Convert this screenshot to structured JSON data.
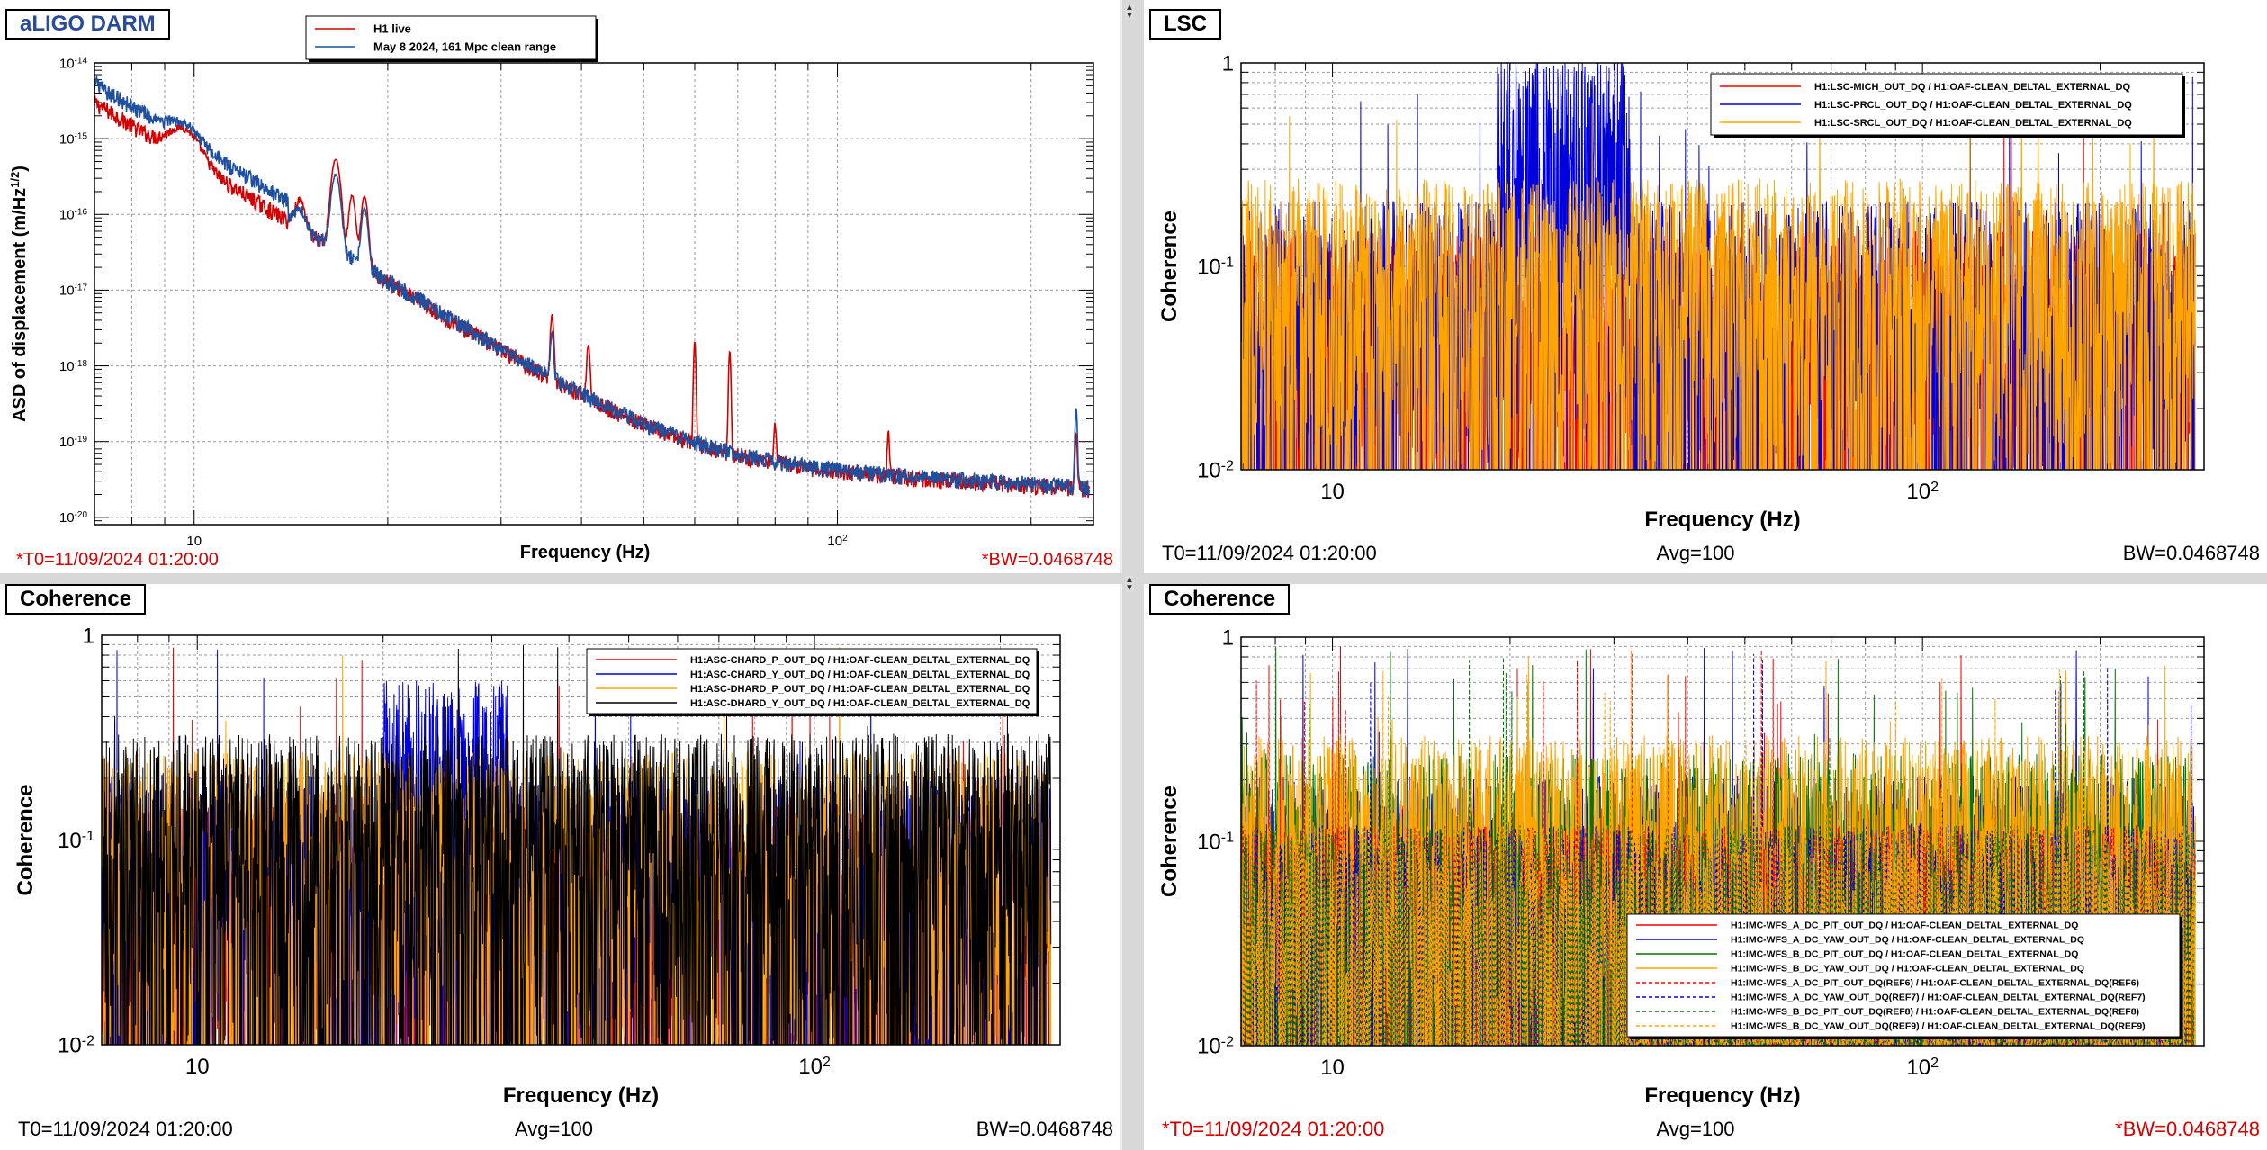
{
  "panels": [
    {
      "id": "darm",
      "title": "aLIGO DARM",
      "chart_data": {
        "type": "line",
        "ylabel": "ASD of displacement (m/Hz^1/2)",
        "xlabel": "Frequency (Hz)",
        "x_scale": "log",
        "y_scale": "log",
        "xlim": [
          7,
          250
        ],
        "ylim": [
          8e-21,
          1e-14
        ],
        "x_ticks": [
          10,
          100
        ],
        "x_tick_labels": [
          "10",
          "10^2"
        ],
        "y_ticks": [
          1e-20,
          1e-19,
          1e-18,
          1e-17,
          1e-16,
          1e-15,
          1e-14
        ],
        "y_tick_labels": [
          "10^-20",
          "10^-19",
          "10^-18",
          "10^-17",
          "10^-16",
          "10^-15",
          "10^-14"
        ],
        "grid": true,
        "legend": "top-left",
        "series": [
          {
            "name": "H1 live",
            "color": "#d40000"
          },
          {
            "name": "May 8 2024, 161 Mpc clean range",
            "color": "#1f4f9f"
          }
        ]
      },
      "footer": {
        "left": "*T0=11/09/2024 01:20:00",
        "center": "",
        "right": "*BW=0.0468748",
        "color": "#d40000"
      }
    },
    {
      "id": "lsc",
      "title": "LSC",
      "chart_data": {
        "type": "line",
        "ylabel": "Coherence",
        "xlabel": "Frequency (Hz)",
        "x_scale": "log",
        "y_scale": "log",
        "xlim": [
          7,
          300
        ],
        "ylim": [
          0.01,
          1
        ],
        "x_ticks": [
          10,
          100
        ],
        "x_tick_labels": [
          "10",
          "10^2"
        ],
        "y_ticks": [
          0.01,
          0.1,
          1
        ],
        "y_tick_labels": [
          "10^-2",
          "10^-1",
          "1"
        ],
        "grid": true,
        "legend": "top-right",
        "series": [
          {
            "name": "H1:LSC-MICH_OUT_DQ / H1:OAF-CLEAN_DELTAL_EXTERNAL_DQ",
            "color": "#ff0000"
          },
          {
            "name": "H1:LSC-PRCL_OUT_DQ / H1:OAF-CLEAN_DELTAL_EXTERNAL_DQ",
            "color": "#0000dd"
          },
          {
            "name": "H1:LSC-SRCL_OUT_DQ / H1:OAF-CLEAN_DELTAL_EXTERNAL_DQ",
            "color": "#ffa500"
          }
        ]
      },
      "footer": {
        "left": "T0=11/09/2024 01:20:00",
        "center": "Avg=100",
        "right": "BW=0.0468748",
        "color": "#000000"
      }
    },
    {
      "id": "asc",
      "title": "Coherence",
      "chart_data": {
        "type": "line",
        "ylabel": "Coherence",
        "xlabel": "Frequency (Hz)",
        "x_scale": "log",
        "y_scale": "log",
        "xlim": [
          7,
          250
        ],
        "ylim": [
          0.01,
          1
        ],
        "x_ticks": [
          10,
          100
        ],
        "x_tick_labels": [
          "10",
          "10^2"
        ],
        "y_ticks": [
          0.01,
          0.1,
          1
        ],
        "y_tick_labels": [
          "10^-2",
          "10^-1",
          "1"
        ],
        "grid": true,
        "legend": "top-right",
        "series": [
          {
            "name": "H1:ASC-CHARD_P_OUT_DQ / H1:OAF-CLEAN_DELTAL_EXTERNAL_DQ",
            "color": "#ff0000"
          },
          {
            "name": "H1:ASC-CHARD_Y_OUT_DQ / H1:OAF-CLEAN_DELTAL_EXTERNAL_DQ",
            "color": "#0000dd"
          },
          {
            "name": "H1:ASC-DHARD_P_OUT_DQ / H1:OAF-CLEAN_DELTAL_EXTERNAL_DQ",
            "color": "#ffa500"
          },
          {
            "name": "H1:ASC-DHARD_Y_OUT_DQ / H1:OAF-CLEAN_DELTAL_EXTERNAL_DQ",
            "color": "#000000"
          }
        ]
      },
      "footer": {
        "left": "T0=11/09/2024 01:20:00",
        "center": "Avg=100",
        "right": "BW=0.0468748",
        "color": "#000000"
      }
    },
    {
      "id": "imc",
      "title": "Coherence",
      "chart_data": {
        "type": "line",
        "ylabel": "Coherence",
        "xlabel": "Frequency (Hz)",
        "x_scale": "log",
        "y_scale": "log",
        "xlim": [
          7,
          300
        ],
        "ylim": [
          0.01,
          1
        ],
        "x_ticks": [
          10,
          100
        ],
        "x_tick_labels": [
          "10",
          "10^2"
        ],
        "y_ticks": [
          0.01,
          0.1,
          1
        ],
        "y_tick_labels": [
          "10^-2",
          "10^-1",
          "1"
        ],
        "grid": true,
        "legend": "bottom-right",
        "series": [
          {
            "name": "H1:IMC-WFS_A_DC_PIT_OUT_DQ / H1:OAF-CLEAN_DELTAL_EXTERNAL_DQ",
            "color": "#ff0000",
            "dashed": false
          },
          {
            "name": "H1:IMC-WFS_A_DC_YAW_OUT_DQ / H1:OAF-CLEAN_DELTAL_EXTERNAL_DQ",
            "color": "#0000dd",
            "dashed": false
          },
          {
            "name": "H1:IMC-WFS_B_DC_PIT_OUT_DQ / H1:OAF-CLEAN_DELTAL_EXTERNAL_DQ",
            "color": "#007700",
            "dashed": false
          },
          {
            "name": "H1:IMC-WFS_B_DC_YAW_OUT_DQ / H1:OAF-CLEAN_DELTAL_EXTERNAL_DQ",
            "color": "#ffa500",
            "dashed": false
          },
          {
            "name": "H1:IMC-WFS_A_DC_PIT_OUT_DQ(REF6) / H1:OAF-CLEAN_DELTAL_EXTERNAL_DQ(REF6)",
            "color": "#ff0000",
            "dashed": true
          },
          {
            "name": "H1:IMC-WFS_A_DC_YAW_OUT_DQ(REF7) / H1:OAF-CLEAN_DELTAL_EXTERNAL_DQ(REF7)",
            "color": "#0000dd",
            "dashed": true
          },
          {
            "name": "H1:IMC-WFS_B_DC_PIT_OUT_DQ(REF8) / H1:OAF-CLEAN_DELTAL_EXTERNAL_DQ(REF8)",
            "color": "#007700",
            "dashed": true
          },
          {
            "name": "H1:IMC-WFS_B_DC_YAW_OUT_DQ(REF9) / H1:OAF-CLEAN_DELTAL_EXTERNAL_DQ(REF9)",
            "color": "#ffa500",
            "dashed": true
          }
        ]
      },
      "footer": {
        "left": "*T0=11/09/2024 01:20:00",
        "center": "Avg=100",
        "right": "*BW=0.0468748",
        "color": "#d40000"
      }
    }
  ]
}
